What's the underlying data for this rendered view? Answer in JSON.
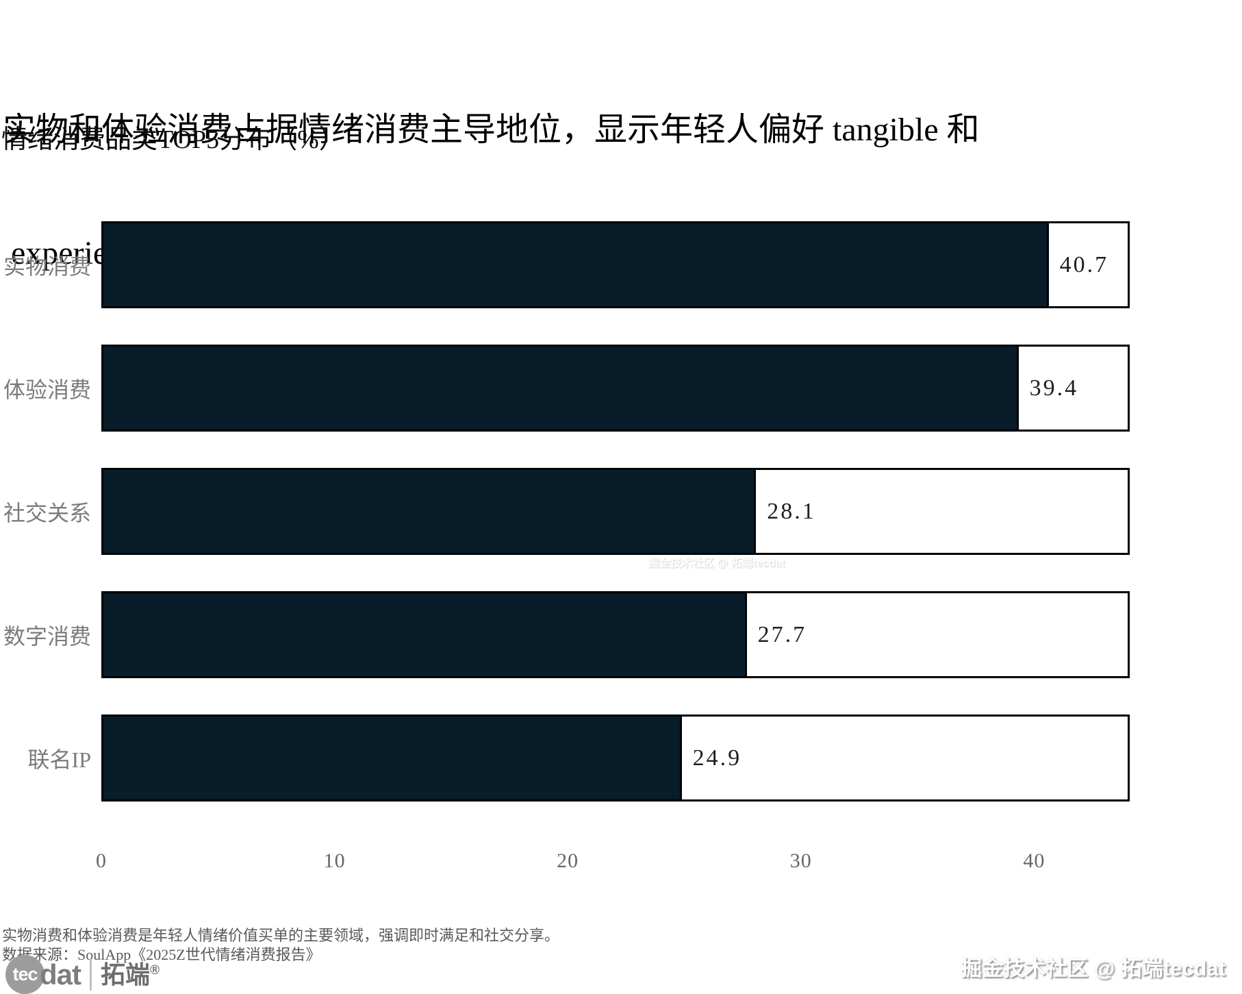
{
  "title": {
    "line1": "实物和体验消费占据情绪消费主导地位，显示年轻人偏好 tangible 和",
    "line2": " experiential 消费"
  },
  "subtitle": "情绪消费品类TOP5分布（%）",
  "chart_data": {
    "type": "bar",
    "orientation": "horizontal",
    "title": "情绪消费品类TOP5分布（%）",
    "categories": [
      "实物消费",
      "体验消费",
      "社交关系",
      "数字消费",
      "联名IP"
    ],
    "values": [
      40.7,
      39.4,
      28.1,
      27.7,
      24.9
    ],
    "value_labels": [
      "40.7",
      "39.4",
      "28.1",
      "27.7",
      "24.9"
    ],
    "xlabel": "",
    "ylabel": "",
    "xlim": [
      0,
      44.1
    ],
    "x_ticks": [
      0,
      10,
      20,
      30,
      40
    ],
    "grid": false,
    "legend": false,
    "bar_color": "#081c2a",
    "bar_edge_color": "#000000",
    "track_color": "#ffffff",
    "category_label_color": "#7b7b7b",
    "value_label_color": "#1f1f1f",
    "tick_label_color": "#666666"
  },
  "footer": {
    "note": "实物消费和体验消费是年轻人情绪价值买单的主要领域，强调即时满足和社交分享。",
    "source": "数据来源：SoulApp《2025Z世代情绪消费报告》"
  },
  "branding": {
    "logo_tec": "tec",
    "logo_dat": "dat",
    "logo_cn": "拓端",
    "logo_reg": "®",
    "watermark": "掘金技术社区 @ 拓端tecdat"
  }
}
